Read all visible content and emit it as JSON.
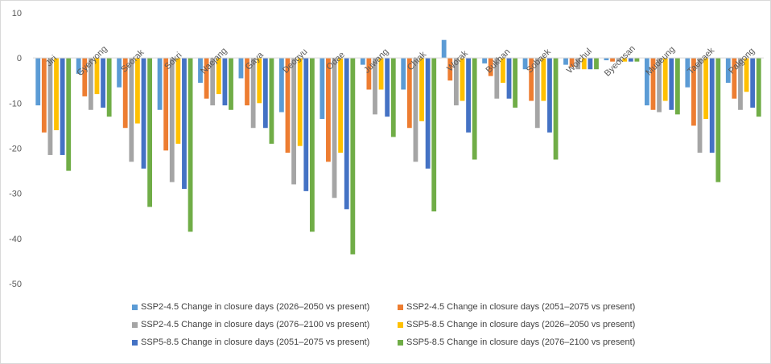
{
  "chart_data": {
    "type": "bar",
    "title": "",
    "xlabel": "",
    "ylabel": "",
    "ylim": [
      -50,
      10
    ],
    "yticks": [
      10,
      0,
      -10,
      -20,
      -30,
      -40,
      -50
    ],
    "grid": false,
    "legend_position": "bottom",
    "categories": [
      "Jiri",
      "Gyeryong",
      "Seorak",
      "Sokri",
      "Naejang",
      "Gaya",
      "Deogyu",
      "Odae",
      "Juwang",
      "Chiak",
      "Worak",
      "Bukhan",
      "Sobaek",
      "Wolchul",
      "Byeonsan",
      "Mudeung",
      "Taebaek",
      "Palgong"
    ],
    "series": [
      {
        "name": "SSP2-4.5 Change in closure days (2026–2050 vs present)",
        "color": "#5b9bd5",
        "values": [
          -10.5,
          -3.5,
          -6.5,
          -11.5,
          -5.5,
          -4.5,
          -12,
          -13.5,
          -1.5,
          -7,
          4,
          -1.2,
          -2.5,
          -1.5,
          -0.5,
          -10.5,
          -6.5,
          -5.5
        ]
      },
      {
        "name": "SSP2-4.5 Change in closure days (2051–2075 vs present)",
        "color": "#ed7d31",
        "values": [
          -16.5,
          -8.5,
          -15.5,
          -20.5,
          -9,
          -10.5,
          -21,
          -23,
          -7,
          -15.5,
          -5,
          -4,
          -9.5,
          -2,
          -0.8,
          -11.5,
          -15,
          -9
        ]
      },
      {
        "name": "SSP2-4.5 Change in closure days (2076–2100 vs present)",
        "color": "#a5a5a5",
        "values": [
          -21.5,
          -11.5,
          -23,
          -27.5,
          -10.5,
          -15.5,
          -28,
          -31,
          -12.5,
          -23,
          -10.5,
          -9,
          -15.5,
          -2.5,
          -0.8,
          -12,
          -21,
          -11.5
        ]
      },
      {
        "name": "SSP5-8.5 Change in closure days (2026–2050 vs present)",
        "color": "#ffc000",
        "values": [
          -16,
          -8,
          -14.5,
          -19,
          -8,
          -10,
          -19.5,
          -21,
          -7,
          -14,
          -9.5,
          -5.5,
          -9.5,
          -2.5,
          -0.8,
          -9.5,
          -13.5,
          -7.5
        ]
      },
      {
        "name": "SSP5-8.5 Change in closure days (2051–2075 vs present)",
        "color": "#4472c4",
        "values": [
          -21.5,
          -11,
          -24.5,
          -29,
          -10.5,
          -15.5,
          -29.5,
          -33.5,
          -13,
          -24.5,
          -16.5,
          -9,
          -16.5,
          -2.5,
          -0.8,
          -11.5,
          -21,
          -11
        ]
      },
      {
        "name": "SSP5-8.5 Change in closure days (2076–2100 vs present)",
        "color": "#70ad47",
        "values": [
          -25,
          -13,
          -33,
          -38.5,
          -11.5,
          -19,
          -38.5,
          -43.5,
          -17.5,
          -34,
          -22.5,
          -11,
          -22.5,
          -2.5,
          -0.8,
          -12.5,
          -27.5,
          -13
        ]
      }
    ]
  }
}
